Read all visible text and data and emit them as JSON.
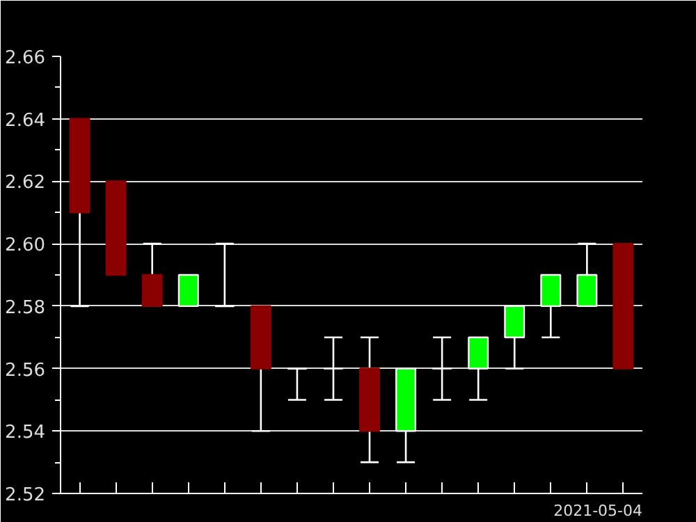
{
  "chart_data": {
    "type": "candlestick",
    "xlabel": "2021-05-04",
    "categories": [
      null,
      null,
      null,
      null,
      null,
      null,
      null,
      null,
      null,
      null,
      null,
      null,
      null,
      null,
      null,
      null
    ],
    "ohlc": [
      [
        2.64,
        2.64,
        2.58,
        2.61
      ],
      [
        2.62,
        2.62,
        2.59,
        2.59
      ],
      [
        2.59,
        2.6,
        2.58,
        2.58
      ],
      [
        2.58,
        2.59,
        2.58,
        2.59
      ],
      [
        2.58,
        2.6,
        2.58,
        2.58
      ],
      [
        2.58,
        2.58,
        2.54,
        2.56
      ],
      [
        2.56,
        2.56,
        2.55,
        2.56
      ],
      [
        2.56,
        2.57,
        2.55,
        2.56
      ],
      [
        2.56,
        2.57,
        2.53,
        2.54
      ],
      [
        2.54,
        2.56,
        2.53,
        2.56
      ],
      [
        2.56,
        2.57,
        2.55,
        2.56
      ],
      [
        2.56,
        2.57,
        2.55,
        2.57
      ],
      [
        2.57,
        2.58,
        2.56,
        2.58
      ],
      [
        2.58,
        2.59,
        2.57,
        2.59
      ],
      [
        2.58,
        2.6,
        2.58,
        2.59
      ],
      [
        2.6,
        2.6,
        2.56,
        2.56
      ]
    ],
    "colors": [
      "#8b0000",
      "#8b0000",
      "#8b0000",
      "#00ff00",
      "#ffffff",
      "#8b0000",
      "#ffffff",
      "#ffffff",
      "#8b0000",
      "#00ff00",
      "#ffffff",
      "#00ff00",
      "#00ff00",
      "#00ff00",
      "#00ff00",
      "#8b0000"
    ],
    "ylim": [
      2.52,
      2.66
    ],
    "yticks": [
      {
        "value": 2.52,
        "label": "2.52"
      },
      {
        "value": 2.53,
        "label": null
      },
      {
        "value": 2.54,
        "label": "2.54"
      },
      {
        "value": 2.55,
        "label": null
      },
      {
        "value": 2.56,
        "label": "2.56"
      },
      {
        "value": 2.57,
        "label": null
      },
      {
        "value": 2.58,
        "label": "2.58"
      },
      {
        "value": 2.59,
        "label": null
      },
      {
        "value": 2.6,
        "label": "2.60"
      },
      {
        "value": 2.61,
        "label": null
      },
      {
        "value": 2.62,
        "label": "2.62"
      },
      {
        "value": 2.63,
        "label": null
      },
      {
        "value": 2.64,
        "label": "2.64"
      },
      {
        "value": 2.65,
        "label": null
      },
      {
        "value": 2.66,
        "label": "2.66"
      }
    ],
    "grid": "y",
    "tick_labels": "y"
  }
}
